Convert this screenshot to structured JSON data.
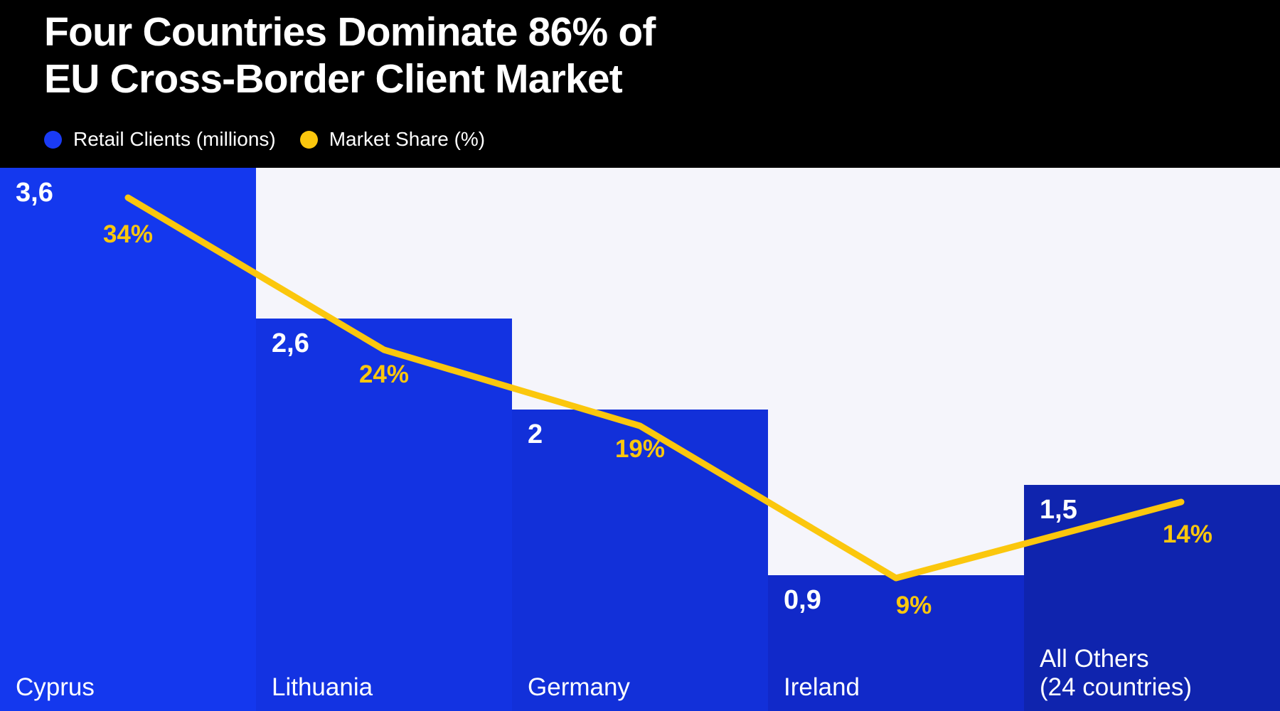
{
  "header": {
    "title_line1": "Four Countries Dominate 86% of",
    "title_line2": "EU Cross-Border Client Market",
    "legend": [
      {
        "label": "Retail Clients (millions)",
        "color": "#1A3BF5",
        "icon": "circle-icon"
      },
      {
        "label": "Market Share (%)",
        "color": "#FBC70D",
        "icon": "circle-icon"
      }
    ]
  },
  "colors": {
    "header_bg": "#000000",
    "chart_bg": "#F5F5FB",
    "line_yellow": "#FBC70D",
    "label_white": "#FFFFFF"
  },
  "chart_data": {
    "type": "bar",
    "subtype": "bar-and-line-combo",
    "title": "Four Countries Dominate 86% of EU Cross-Border Client Market",
    "categories": [
      "Cyprus",
      "Lithuania",
      "Germany",
      "Ireland",
      "All Others\n(24 countries)"
    ],
    "series": [
      {
        "name": "Retail Clients (millions)",
        "type": "bar",
        "values": [
          3.6,
          2.6,
          2,
          0.9,
          1.5
        ],
        "value_labels": [
          "3,6",
          "2,6",
          "2",
          "0,9",
          "1,5"
        ],
        "colors": [
          "#1438EE",
          "#1333E2",
          "#1230D9",
          "#1129C9",
          "#0F24AE"
        ]
      },
      {
        "name": "Market Share (%)",
        "type": "line",
        "values": [
          34,
          24,
          19,
          9,
          14
        ],
        "value_labels": [
          "34%",
          "24%",
          "19%",
          "9%",
          "14%"
        ],
        "color": "#FBC70D"
      }
    ],
    "ylim": [
      0,
      3.6
    ],
    "grid": false,
    "legend_position": "top-left under title",
    "notes": "bars flush side-by-side, no axis lines, labels inside bars"
  }
}
